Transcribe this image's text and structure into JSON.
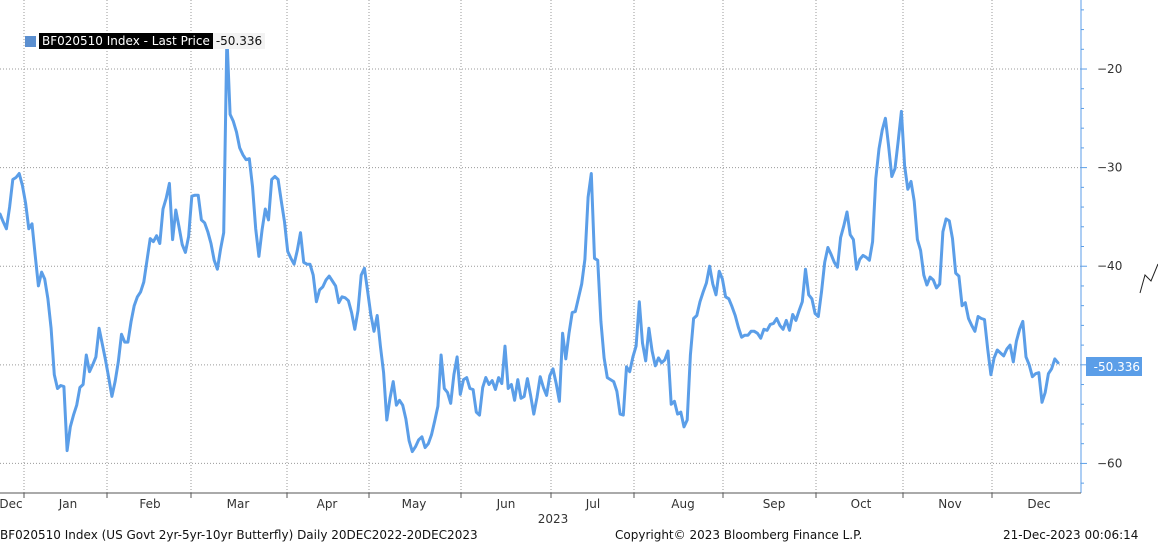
{
  "chart_data": {
    "type": "line",
    "title": "",
    "xlabel": "",
    "ylabel": "",
    "ylim": [
      -63,
      -13
    ],
    "yticks": [
      -20,
      -30,
      -40,
      -50,
      -60
    ],
    "grid": true,
    "legend_position": "top-left",
    "months": [
      "Dec",
      "Jan",
      "Feb",
      "Mar",
      "Apr",
      "May",
      "Jun",
      "Jul",
      "Aug",
      "Sep",
      "Oct",
      "Nov",
      "Dec"
    ],
    "year_label": "2023",
    "series": [
      {
        "name": "BF020510 Index - Last Price",
        "last_value": "-50.336",
        "color": "#5b9ee8",
        "values": [
          -34.7,
          -35.5,
          -36.2,
          -34.0,
          -31.2,
          -31.0,
          -30.6,
          -31.8,
          -33.6,
          -36.2,
          -35.7,
          -38.9,
          -42.0,
          -40.6,
          -41.3,
          -43.3,
          -46.3,
          -51.0,
          -52.4,
          -52.1,
          -52.2,
          -58.7,
          -56.3,
          -55.1,
          -54.1,
          -52.3,
          -52.0,
          -49.0,
          -50.7,
          -50.0,
          -49.2,
          -46.3,
          -47.9,
          -49.5,
          -51.3,
          -53.2,
          -51.7,
          -49.7,
          -46.9,
          -47.7,
          -47.7,
          -45.6,
          -44.0,
          -43.1,
          -42.6,
          -41.6,
          -39.4,
          -37.2,
          -37.5,
          -36.9,
          -37.7,
          -34.2,
          -33.1,
          -31.6,
          -37.3,
          -34.3,
          -36.0,
          -37.8,
          -38.6,
          -37.0,
          -32.9,
          -32.8,
          -32.8,
          -35.3,
          -35.6,
          -36.5,
          -37.7,
          -39.4,
          -40.3,
          -38.3,
          -36.6,
          -16.7,
          -24.6,
          -25.3,
          -26.4,
          -28.0,
          -28.7,
          -29.2,
          -29.1,
          -31.9,
          -36.2,
          -39.0,
          -36.3,
          -34.2,
          -35.3,
          -31.2,
          -30.9,
          -31.2,
          -33.4,
          -35.5,
          -38.5,
          -39.2,
          -39.8,
          -38.4,
          -36.6,
          -39.6,
          -39.8,
          -39.8,
          -40.9,
          -43.6,
          -42.4,
          -42.1,
          -41.4,
          -41.0,
          -41.5,
          -42.0,
          -43.7,
          -43.1,
          -43.2,
          -43.5,
          -44.7,
          -46.4,
          -44.5,
          -40.9,
          -40.2,
          -42.5,
          -44.9,
          -46.6,
          -45.0,
          -48.1,
          -50.8,
          -55.6,
          -53.4,
          -51.7,
          -54.1,
          -53.6,
          -54.1,
          -55.5,
          -57.7,
          -58.8,
          -58.3,
          -57.6,
          -57.3,
          -58.4,
          -58.0,
          -57.1,
          -55.7,
          -54.2,
          -49.0,
          -52.4,
          -52.8,
          -53.9,
          -51.0,
          -49.2,
          -53.0,
          -51.5,
          -51.3,
          -52.4,
          -52.5,
          -54.8,
          -55.1,
          -52.3,
          -51.3,
          -52.0,
          -51.6,
          -52.5,
          -51.3,
          -51.9,
          -48.1,
          -52.4,
          -52.0,
          -53.6,
          -51.5,
          -53.4,
          -53.2,
          -51.4,
          -53.1,
          -55.0,
          -53.3,
          -51.2,
          -52.3,
          -53.1,
          -51.1,
          -50.4,
          -51.9,
          -53.7,
          -46.8,
          -49.4,
          -46.8,
          -44.7,
          -44.6,
          -43.2,
          -41.8,
          -39.3,
          -33.0,
          -30.6,
          -39.2,
          -39.4,
          -45.6,
          -49.3,
          -51.3,
          -51.5,
          -51.7,
          -52.7,
          -55.0,
          -55.1,
          -50.2,
          -50.7,
          -49.2,
          -48.1,
          -43.6,
          -47.8,
          -49.6,
          -46.3,
          -48.6,
          -50.1,
          -49.3,
          -49.8,
          -49.5,
          -48.6,
          -54.0,
          -53.7,
          -55.0,
          -54.8,
          -56.3,
          -55.6,
          -49.0,
          -45.3,
          -45.0,
          -43.6,
          -42.6,
          -41.7,
          -40.0,
          -41.8,
          -42.9,
          -40.5,
          -41.3,
          -43.1,
          -43.3,
          -44.1,
          -45.0,
          -46.2,
          -47.2,
          -47.0,
          -47.0,
          -46.6,
          -46.6,
          -46.8,
          -47.3,
          -46.4,
          -46.5,
          -45.9,
          -45.8,
          -45.3,
          -46.0,
          -46.4,
          -45.5,
          -46.5,
          -44.9,
          -45.5,
          -44.5,
          -43.6,
          -40.3,
          -42.9,
          -43.3,
          -44.8,
          -45.1,
          -42.6,
          -39.6,
          -38.1,
          -38.8,
          -39.6,
          -40.1,
          -37.1,
          -35.9,
          -34.5,
          -36.8,
          -37.3,
          -40.3,
          -39.3,
          -38.9,
          -39.1,
          -39.4,
          -37.5,
          -31.1,
          -28.1,
          -26.2,
          -25.0,
          -27.8,
          -30.9,
          -30.1,
          -27.3,
          -24.3,
          -29.8,
          -32.2,
          -31.4,
          -33.4,
          -37.3,
          -38.4,
          -40.9,
          -41.9,
          -41.1,
          -41.4,
          -42.2,
          -41.8,
          -36.5,
          -35.2,
          -35.4,
          -37.2,
          -40.7,
          -41.0,
          -44.0,
          -43.7,
          -45.3,
          -46.0,
          -46.6,
          -45.1,
          -45.3,
          -45.4,
          -48.4,
          -51.0,
          -49.3,
          -48.5,
          -48.8,
          -49.1,
          -48.4,
          -48.0,
          -49.7,
          -47.6,
          -46.4,
          -45.6,
          -49.2,
          -50.0,
          -51.2,
          -50.9,
          -50.8,
          -53.8,
          -52.8,
          -50.9,
          -50.4,
          -49.4,
          -49.8
        ]
      }
    ]
  },
  "footer": {
    "left": "BF020510 Index (US Govt 2yr-5yr-10yr Butterfly)  Daily 20DEC2022-20DEC2023",
    "copyright": "Copyright© 2023 Bloomberg Finance L.P.",
    "timestamp": "21-Dec-2023 00:06:14"
  }
}
